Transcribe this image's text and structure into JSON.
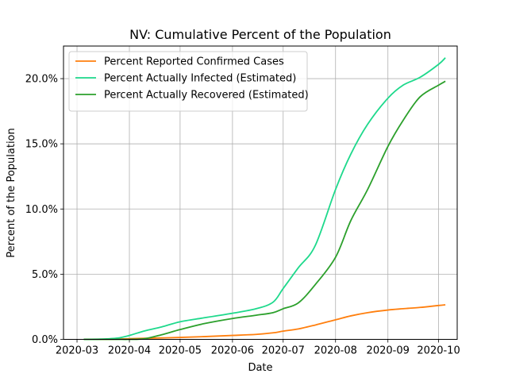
{
  "chart_data": {
    "type": "line",
    "title": "NV: Cumulative Percent of the Population",
    "xlabel": "Date",
    "ylabel": "Percent of the Population",
    "x_ticks": [
      "2020-03",
      "2020-04",
      "2020-05",
      "2020-06",
      "2020-07",
      "2020-08",
      "2020-09",
      "2020-10"
    ],
    "y_ticks": [
      "0.0%",
      "5.0%",
      "10.0%",
      "15.0%",
      "20.0%"
    ],
    "ylim": [
      0,
      22.5
    ],
    "grid": true,
    "legend_position": "top-left",
    "x": [
      "2020-03-05",
      "2020-03-15",
      "2020-03-25",
      "2020-04-01",
      "2020-04-10",
      "2020-04-20",
      "2020-05-01",
      "2020-05-15",
      "2020-06-01",
      "2020-06-15",
      "2020-06-25",
      "2020-07-01",
      "2020-07-10",
      "2020-07-20",
      "2020-08-01",
      "2020-08-10",
      "2020-08-20",
      "2020-09-01",
      "2020-09-10",
      "2020-09-20",
      "2020-10-01",
      "2020-10-05"
    ],
    "series": [
      {
        "name": "Percent Reported Confirmed Cases",
        "color": "#ff7f0e",
        "values": [
          0.0,
          0.0,
          0.02,
          0.05,
          0.08,
          0.11,
          0.15,
          0.21,
          0.3,
          0.38,
          0.5,
          0.63,
          0.8,
          1.1,
          1.5,
          1.8,
          2.05,
          2.25,
          2.35,
          2.45,
          2.6,
          2.65
        ]
      },
      {
        "name": "Percent Actually Infected (Estimated)",
        "color": "#1ed98c",
        "values": [
          0.0,
          0.02,
          0.1,
          0.3,
          0.65,
          0.95,
          1.35,
          1.65,
          2.0,
          2.35,
          2.85,
          3.9,
          5.5,
          7.2,
          11.5,
          14.2,
          16.5,
          18.5,
          19.5,
          20.1,
          21.1,
          21.6
        ]
      },
      {
        "name": "Percent Actually Recovered (Estimated)",
        "color": "#2ca02c",
        "values": [
          0.0,
          0.0,
          0.0,
          0.0,
          0.05,
          0.35,
          0.75,
          1.2,
          1.6,
          1.85,
          2.05,
          2.35,
          2.8,
          4.2,
          6.3,
          9.1,
          11.5,
          14.8,
          16.8,
          18.6,
          19.5,
          19.8
        ]
      }
    ]
  }
}
